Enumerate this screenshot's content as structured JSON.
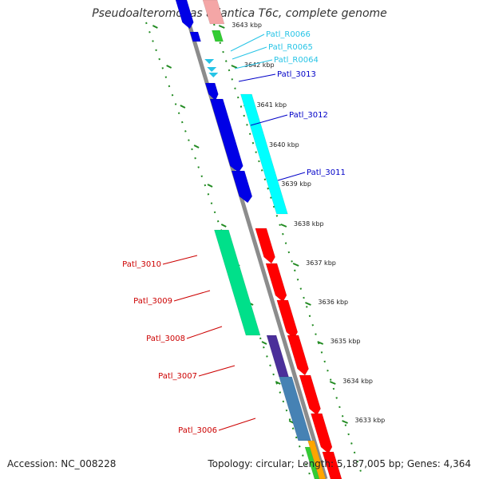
{
  "title": "Pseudoalteromonas atlantica T6c, complete genome",
  "footer": {
    "accession": "Accession: NC_008228",
    "summary": "Topology: circular; Length: 5,187,005 bp; Genes: 4,364"
  },
  "colors": {
    "backbone": "#8c8c8c",
    "tick_ring": "#228b22",
    "rRNA": "#f4a6a6",
    "tRNA": "#27c4e6",
    "blue_gene": "#0000e6",
    "cyan_gene": "#00ffff",
    "red_gene": "#ff0000",
    "teal_gene": "#00e08a",
    "slate_gene": "#4682b4",
    "purple_gene": "#4b2f9a",
    "green_gene": "#33cc33",
    "orange_gene": "#ffa500"
  },
  "tick_labels": [
    "3643 kbp",
    "3642 kbp",
    "3641 kbp",
    "3640 kbp",
    "3639 kbp",
    "3638 kbp",
    "3637 kbp",
    "3636 kbp",
    "3635 kbp",
    "3634 kbp",
    "3633 kbp"
  ],
  "gene_labels": [
    {
      "text": "Patl_R0066",
      "color": "#27c4e6"
    },
    {
      "text": "Patl_R0065",
      "color": "#27c4e6"
    },
    {
      "text": "Patl_R0064",
      "color": "#27c4e6"
    },
    {
      "text": "Patl_3013",
      "color": "#0000c8"
    },
    {
      "text": "Patl_3012",
      "color": "#0000c8"
    },
    {
      "text": "Patl_3011",
      "color": "#0000c8"
    },
    {
      "text": "Patl_3010",
      "color": "#cc0000"
    },
    {
      "text": "Patl_3009",
      "color": "#cc0000"
    },
    {
      "text": "Patl_3008",
      "color": "#cc0000"
    },
    {
      "text": "Patl_3007",
      "color": "#cc0000"
    },
    {
      "text": "Patl_3006",
      "color": "#cc0000"
    }
  ]
}
